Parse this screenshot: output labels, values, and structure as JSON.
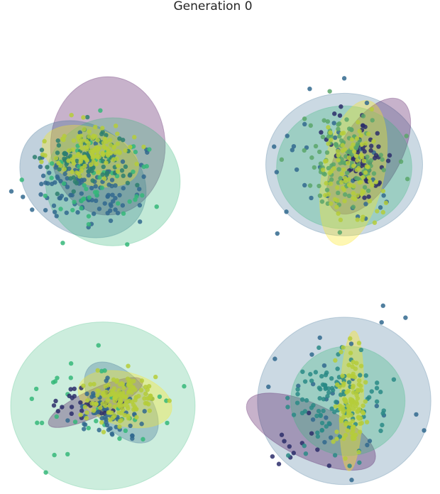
{
  "chart_data": {
    "type": "scatter",
    "title": "Generation 0",
    "panels": [
      {
        "panel": "top-left",
        "xlim": [
          -3.2,
          4.2
        ],
        "ylim": [
          -3.2,
          4.0
        ],
        "ellipses": [
          {
            "color": "#440154",
            "cx": 0.7,
            "cy": 0.8,
            "rx": 2.3,
            "ry": 2.7,
            "angle": 0,
            "opacity": 0.3
          },
          {
            "color": "#31688e",
            "cx": -0.3,
            "cy": -0.5,
            "rx": 2.7,
            "ry": 2.1,
            "angle": -35,
            "opacity": 0.3
          },
          {
            "color": "#35b779",
            "cx": 0.9,
            "cy": -0.6,
            "rx": 2.7,
            "ry": 2.5,
            "angle": 0,
            "opacity": 0.3
          },
          {
            "color": "#fde725",
            "cx": 0.0,
            "cy": 0.4,
            "rx": 2.0,
            "ry": 1.1,
            "angle": -18,
            "opacity": 0.35
          }
        ],
        "clusters": [
          {
            "color": "#31688e",
            "cx": -0.4,
            "cy": -0.7,
            "sx": 1.3,
            "sy": 0.8,
            "n": 120
          },
          {
            "color": "#35b779",
            "cx": 0.4,
            "cy": -0.4,
            "sx": 1.3,
            "sy": 1.0,
            "n": 60
          },
          {
            "color": "#2d7f6e",
            "cx": 0.0,
            "cy": 0.3,
            "sx": 0.9,
            "sy": 0.6,
            "n": 90
          },
          {
            "color": "#b5cc3a",
            "cx": 0.1,
            "cy": 0.6,
            "sx": 0.8,
            "sy": 0.5,
            "n": 120
          }
        ]
      },
      {
        "panel": "top-right",
        "xlim": [
          -3.0,
          3.0
        ],
        "ylim": [
          -3.0,
          3.6
        ],
        "ellipses": [
          {
            "color": "#31688e",
            "cx": 0.0,
            "cy": 0.0,
            "rx": 2.55,
            "ry": 2.55,
            "angle": 0,
            "opacity": 0.25
          },
          {
            "color": "#440154",
            "cx": 0.8,
            "cy": 0.3,
            "rx": 2.1,
            "ry": 1.1,
            "angle": 60,
            "opacity": 0.3
          },
          {
            "color": "#35b779",
            "cx": 0.0,
            "cy": -0.1,
            "rx": 2.2,
            "ry": 2.2,
            "angle": 0,
            "opacity": 0.3
          },
          {
            "color": "#fde725",
            "cx": 0.3,
            "cy": -0.3,
            "rx": 2.4,
            "ry": 1.1,
            "angle": 78,
            "opacity": 0.35
          }
        ],
        "clusters": [
          {
            "color": "#31688e",
            "cx": 0.0,
            "cy": 0.0,
            "sx": 1.4,
            "sy": 1.4,
            "n": 35
          },
          {
            "color": "#2c2d6a",
            "cx": 0.6,
            "cy": 0.3,
            "sx": 0.5,
            "sy": 0.8,
            "n": 60
          },
          {
            "color": "#5aa66a",
            "cx": 0.0,
            "cy": 0.2,
            "sx": 0.7,
            "sy": 0.8,
            "n": 120
          },
          {
            "color": "#b5cc3a",
            "cx": 0.2,
            "cy": -0.3,
            "sx": 0.5,
            "sy": 0.9,
            "n": 90
          }
        ]
      },
      {
        "panel": "bottom-left",
        "xlim": [
          -2.5,
          2.5
        ],
        "ylim": [
          -2.5,
          3.0
        ],
        "ellipses": [
          {
            "color": "#35b779",
            "cx": 0.0,
            "cy": 0.0,
            "rx": 2.5,
            "ry": 2.5,
            "angle": 0,
            "opacity": 0.25
          },
          {
            "color": "#440154",
            "cx": -0.2,
            "cy": 0.1,
            "rx": 1.4,
            "ry": 0.4,
            "angle": 25,
            "opacity": 0.3
          },
          {
            "color": "#31688e",
            "cx": 0.5,
            "cy": 0.1,
            "rx": 1.3,
            "ry": 0.8,
            "angle": -50,
            "opacity": 0.3
          },
          {
            "color": "#fde725",
            "cx": 0.6,
            "cy": 0.2,
            "rx": 1.3,
            "ry": 0.8,
            "angle": -15,
            "opacity": 0.35
          }
        ],
        "clusters": [
          {
            "color": "#35b779",
            "cx": 0.0,
            "cy": 0.0,
            "sx": 1.0,
            "sy": 0.8,
            "n": 35
          },
          {
            "color": "#2c2d6a",
            "cx": -0.3,
            "cy": 0.1,
            "sx": 0.5,
            "sy": 0.25,
            "n": 35
          },
          {
            "color": "#31688e",
            "cx": 0.2,
            "cy": -0.2,
            "sx": 0.5,
            "sy": 0.4,
            "n": 60
          },
          {
            "color": "#b5cc3a",
            "cx": 0.5,
            "cy": 0.2,
            "sx": 0.5,
            "sy": 0.35,
            "n": 140
          }
        ]
      },
      {
        "panel": "bottom-right",
        "xlim": [
          -2.5,
          2.5
        ],
        "ylim": [
          -2.6,
          2.8
        ],
        "ellipses": [
          {
            "color": "#31688e",
            "cx": 0.0,
            "cy": 0.0,
            "rx": 2.35,
            "ry": 2.45,
            "angle": 0,
            "opacity": 0.25
          },
          {
            "color": "#440154",
            "cx": -0.9,
            "cy": -0.9,
            "rx": 1.9,
            "ry": 0.8,
            "angle": -25,
            "opacity": 0.3
          },
          {
            "color": "#35b779",
            "cx": 0.1,
            "cy": 0.0,
            "rx": 1.55,
            "ry": 1.6,
            "angle": 0,
            "opacity": 0.3
          },
          {
            "color": "#fde725",
            "cx": 0.2,
            "cy": 0.0,
            "rx": 1.9,
            "ry": 0.35,
            "angle": 88,
            "opacity": 0.4
          }
        ],
        "clusters": [
          {
            "color": "#31688e",
            "cx": 0.0,
            "cy": 0.1,
            "sx": 1.4,
            "sy": 1.3,
            "n": 35
          },
          {
            "color": "#2c2d6a",
            "cx": -1.3,
            "cy": -1.3,
            "sx": 0.5,
            "sy": 0.4,
            "n": 12
          },
          {
            "color": "#2a8a86",
            "cx": -0.2,
            "cy": 0.0,
            "sx": 0.6,
            "sy": 0.7,
            "n": 110
          },
          {
            "color": "#b5cc3a",
            "cx": 0.2,
            "cy": 0.0,
            "sx": 0.2,
            "sy": 0.7,
            "n": 110
          }
        ]
      }
    ]
  }
}
